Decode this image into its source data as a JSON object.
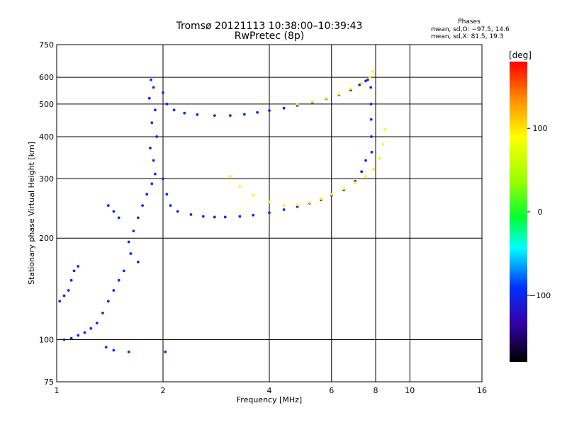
{
  "chart_data": {
    "type": "scatter",
    "title": "Tromsø 20121113 10:38:00–10:39:43",
    "subtitle": "RwPretec (8p)",
    "xlabel": "Frequency [MHz]",
    "ylabel": "Stationary phase Virtual Height [km]",
    "x_scale": "log",
    "y_scale": "log",
    "xlim": [
      1,
      16
    ],
    "ylim": [
      75,
      750
    ],
    "x_ticks": [
      "1",
      "2",
      "4",
      "6",
      "8",
      "10",
      "16"
    ],
    "x_tick_values": [
      1,
      2,
      4,
      6,
      8,
      10,
      16
    ],
    "y_ticks": [
      "75",
      "100",
      "200",
      "300",
      "400",
      "500",
      "600",
      "750"
    ],
    "y_tick_values": [
      75,
      100,
      200,
      300,
      400,
      500,
      600,
      750
    ],
    "grid": true,
    "stats": {
      "heading": "Phases",
      "o_line": "mean, sd,O: −97.5, 14.6",
      "x_line": "mean, sd,X:  81.5, 19.3"
    },
    "colorbar": {
      "label": "[deg]",
      "range": [
        -180,
        180
      ],
      "ticks": [
        "100",
        "0",
        "−100"
      ],
      "tick_values": [
        100,
        0,
        -100
      ]
    },
    "series": [
      {
        "mean_phase": -97.5,
        "points": [
          [
            1.85,
            590
          ],
          [
            1.88,
            560
          ],
          [
            1.83,
            520
          ],
          [
            1.9,
            480
          ],
          [
            1.86,
            440
          ],
          [
            1.92,
            400
          ],
          [
            1.84,
            370
          ],
          [
            1.88,
            340
          ],
          [
            1.9,
            310
          ],
          [
            1.86,
            290
          ],
          [
            1.8,
            270
          ],
          [
            1.75,
            250
          ],
          [
            1.7,
            230
          ],
          [
            1.65,
            210
          ],
          [
            1.6,
            195
          ],
          [
            1.62,
            180
          ],
          [
            1.7,
            170
          ],
          [
            1.55,
            160
          ],
          [
            1.5,
            150
          ],
          [
            1.45,
            140
          ],
          [
            1.4,
            130
          ],
          [
            1.35,
            120
          ],
          [
            1.3,
            112
          ],
          [
            1.25,
            108
          ],
          [
            1.2,
            105
          ],
          [
            1.15,
            103
          ],
          [
            1.1,
            101
          ],
          [
            1.05,
            100
          ],
          [
            1.02,
            130
          ],
          [
            1.05,
            135
          ],
          [
            1.08,
            140
          ],
          [
            1.1,
            150
          ],
          [
            1.12,
            160
          ],
          [
            1.15,
            165
          ],
          [
            1.4,
            250
          ],
          [
            1.45,
            240
          ],
          [
            1.5,
            230
          ],
          [
            1.38,
            95
          ],
          [
            1.45,
            93
          ],
          [
            1.6,
            92
          ],
          [
            2.03,
            92
          ],
          [
            2.0,
            300
          ],
          [
            2.05,
            270
          ],
          [
            2.1,
            250
          ],
          [
            2.2,
            240
          ],
          [
            2.4,
            235
          ],
          [
            2.6,
            232
          ],
          [
            2.8,
            231
          ],
          [
            3.0,
            231
          ],
          [
            3.3,
            232
          ],
          [
            3.6,
            234
          ],
          [
            4.0,
            238
          ],
          [
            4.4,
            243
          ],
          [
            4.8,
            248
          ],
          [
            5.2,
            254
          ],
          [
            5.6,
            260
          ],
          [
            6.0,
            268
          ],
          [
            6.5,
            278
          ],
          [
            7.0,
            295
          ],
          [
            7.3,
            315
          ],
          [
            7.5,
            340
          ],
          [
            2.0,
            540
          ],
          [
            2.05,
            500
          ],
          [
            2.15,
            480
          ],
          [
            2.3,
            470
          ],
          [
            2.5,
            465
          ],
          [
            2.8,
            462
          ],
          [
            3.1,
            462
          ],
          [
            3.4,
            466
          ],
          [
            3.7,
            472
          ],
          [
            4.0,
            478
          ],
          [
            4.4,
            486
          ],
          [
            4.8,
            495
          ],
          [
            5.3,
            506
          ],
          [
            5.8,
            518
          ],
          [
            6.3,
            532
          ],
          [
            6.8,
            550
          ],
          [
            7.2,
            570
          ],
          [
            7.5,
            585
          ],
          [
            7.6,
            590
          ],
          [
            7.75,
            560
          ],
          [
            7.76,
            500
          ],
          [
            7.77,
            450
          ],
          [
            7.78,
            400
          ],
          [
            7.8,
            360
          ]
        ]
      },
      {
        "mean_phase": 81.5,
        "points": [
          [
            3.1,
            305
          ],
          [
            3.3,
            285
          ],
          [
            3.6,
            268
          ],
          [
            4.0,
            256
          ],
          [
            4.4,
            250
          ],
          [
            4.8,
            251
          ],
          [
            5.2,
            255
          ],
          [
            5.6,
            262
          ],
          [
            6.0,
            270
          ],
          [
            6.5,
            280
          ],
          [
            7.0,
            292
          ],
          [
            7.5,
            305
          ],
          [
            7.9,
            320
          ],
          [
            8.2,
            345
          ],
          [
            8.4,
            380
          ],
          [
            8.5,
            420
          ],
          [
            4.8,
            500
          ],
          [
            5.3,
            508
          ],
          [
            5.8,
            520
          ],
          [
            6.3,
            535
          ],
          [
            6.8,
            555
          ],
          [
            7.3,
            575
          ],
          [
            7.7,
            600
          ],
          [
            7.85,
            625
          ]
        ]
      }
    ]
  }
}
